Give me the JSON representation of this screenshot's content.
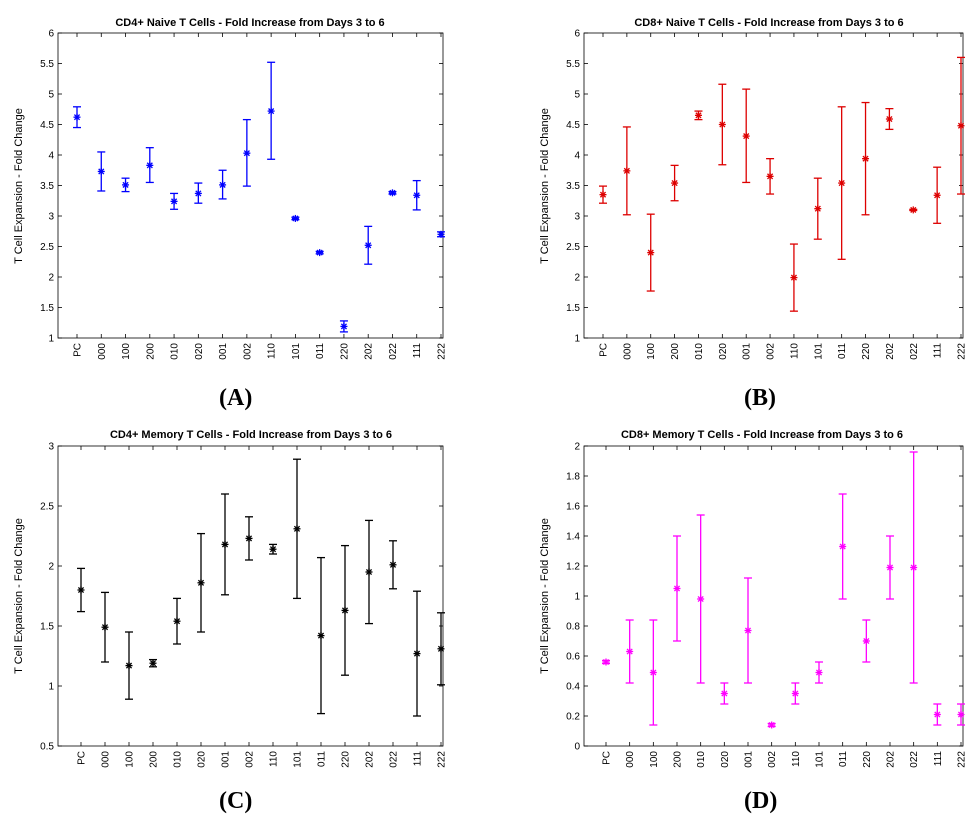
{
  "panels": [
    {
      "label_open": "(",
      "letter": "A",
      "label_close": ")"
    },
    {
      "label_open": "(",
      "letter": "B",
      "label_close": ")"
    },
    {
      "label_open": "(",
      "letter": "C",
      "label_close": ")"
    },
    {
      "label_open": "(",
      "letter": "D",
      "label_close": ")"
    }
  ],
  "chart_data": [
    {
      "type": "scatter",
      "title": "CD4+ Naive T Cells - Fold Increase from Days 3 to 6",
      "xlabel": "",
      "ylabel": "T Cell Expansion - Fold Change",
      "ylim": [
        1,
        6
      ],
      "yticks": [
        "1",
        "1.5",
        "2",
        "2.5",
        "3",
        "3.5",
        "4",
        "4.5",
        "5",
        "5.5",
        "6"
      ],
      "categories": [
        "PC",
        "000",
        "100",
        "200",
        "010",
        "020",
        "001",
        "002",
        "110",
        "101",
        "011",
        "220",
        "202",
        "022",
        "111",
        "222"
      ],
      "series": [
        {
          "color": "#0000ff",
          "values": [
            4.62,
            3.73,
            3.51,
            3.83,
            3.24,
            3.37,
            3.51,
            4.03,
            4.72,
            2.96,
            2.4,
            1.19,
            2.52,
            3.38,
            3.34,
            2.7
          ],
          "err_low": [
            4.45,
            3.41,
            3.4,
            3.55,
            3.11,
            3.21,
            3.28,
            3.49,
            3.93,
            2.94,
            2.38,
            1.1,
            2.21,
            3.36,
            3.1,
            2.66
          ],
          "err_high": [
            4.79,
            4.05,
            3.62,
            4.12,
            3.37,
            3.54,
            3.75,
            4.58,
            5.52,
            2.98,
            2.42,
            1.28,
            2.83,
            3.4,
            3.58,
            2.74
          ]
        }
      ],
      "grid": false
    },
    {
      "type": "scatter",
      "title": "CD8+ Naive T Cells - Fold Increase from Days 3 to 6",
      "xlabel": "",
      "ylabel": "T Cell Expansion - Fold Change",
      "ylim": [
        1,
        6
      ],
      "yticks": [
        "1",
        "1.5",
        "2",
        "2.5",
        "3",
        "3.5",
        "4",
        "4.5",
        "5",
        "5.5",
        "6"
      ],
      "categories": [
        "PC",
        "000",
        "100",
        "200",
        "010",
        "020",
        "001",
        "002",
        "110",
        "101",
        "011",
        "220",
        "202",
        "022",
        "111",
        "222"
      ],
      "series": [
        {
          "color": "#dd0000",
          "values": [
            3.35,
            3.74,
            2.4,
            3.54,
            4.65,
            4.5,
            4.31,
            3.65,
            1.99,
            3.12,
            3.54,
            3.94,
            4.59,
            3.1,
            3.34,
            4.48
          ],
          "err_low": [
            3.21,
            3.02,
            1.77,
            3.25,
            4.58,
            3.84,
            3.55,
            3.36,
            1.44,
            2.62,
            2.29,
            3.02,
            4.42,
            3.09,
            2.88,
            3.36
          ],
          "err_high": [
            3.49,
            4.46,
            3.03,
            3.83,
            4.72,
            5.16,
            5.08,
            3.94,
            2.54,
            3.62,
            4.79,
            4.86,
            4.76,
            3.11,
            3.8,
            5.6
          ]
        }
      ],
      "grid": false
    },
    {
      "type": "scatter",
      "title": "CD4+ Memory T Cells - Fold Increase from Days 3 to 6",
      "xlabel": "",
      "ylabel": "T Cell Expansion - Fold Change",
      "ylim": [
        0.5,
        3
      ],
      "yticks": [
        "0.5",
        "1",
        "1.5",
        "2",
        "2.5",
        "3"
      ],
      "categories": [
        "PC",
        "000",
        "100",
        "200",
        "010",
        "020",
        "001",
        "002",
        "110",
        "101",
        "011",
        "220",
        "202",
        "022",
        "111",
        "222"
      ],
      "series": [
        {
          "color": "#000000",
          "values": [
            1.8,
            1.49,
            1.17,
            1.19,
            1.54,
            1.86,
            2.18,
            2.23,
            2.14,
            2.31,
            1.42,
            1.63,
            1.95,
            2.01,
            1.27,
            1.31
          ],
          "err_low": [
            1.62,
            1.2,
            0.89,
            1.16,
            1.35,
            1.45,
            1.76,
            2.05,
            2.1,
            1.73,
            0.77,
            1.09,
            1.52,
            1.81,
            0.75,
            1.01
          ],
          "err_high": [
            1.98,
            1.78,
            1.45,
            1.22,
            1.73,
            2.27,
            2.6,
            2.41,
            2.18,
            2.89,
            2.07,
            2.17,
            2.38,
            2.21,
            1.79,
            1.61
          ]
        }
      ],
      "grid": false
    },
    {
      "type": "scatter",
      "title": "CD8+ Memory T Cells - Fold Increase from Days 3 to 6",
      "xlabel": "",
      "ylabel": "T Cell Expansion - Fold Change",
      "ylim": [
        0,
        2
      ],
      "yticks": [
        "0",
        "0.2",
        "0.4",
        "0.6",
        "0.8",
        "1",
        "1.2",
        "1.4",
        "1.6",
        "1.8",
        "2"
      ],
      "categories": [
        "PC",
        "000",
        "100",
        "200",
        "010",
        "020",
        "001",
        "002",
        "110",
        "101",
        "011",
        "220",
        "202",
        "022",
        "111",
        "222"
      ],
      "series": [
        {
          "color": "#ff00ff",
          "values": [
            0.56,
            0.63,
            0.49,
            1.05,
            0.98,
            0.35,
            0.77,
            0.14,
            0.35,
            0.49,
            1.33,
            0.7,
            1.19,
            1.19,
            0.21,
            0.21
          ],
          "err_low": [
            0.55,
            0.42,
            0.14,
            0.7,
            0.42,
            0.28,
            0.42,
            0.13,
            0.28,
            0.42,
            0.98,
            0.56,
            0.98,
            0.42,
            0.14,
            0.14
          ],
          "err_high": [
            0.57,
            0.84,
            0.84,
            1.4,
            1.54,
            0.42,
            1.12,
            0.15,
            0.42,
            0.56,
            1.68,
            0.84,
            1.4,
            1.96,
            0.28,
            0.28
          ]
        }
      ],
      "grid": false
    }
  ]
}
